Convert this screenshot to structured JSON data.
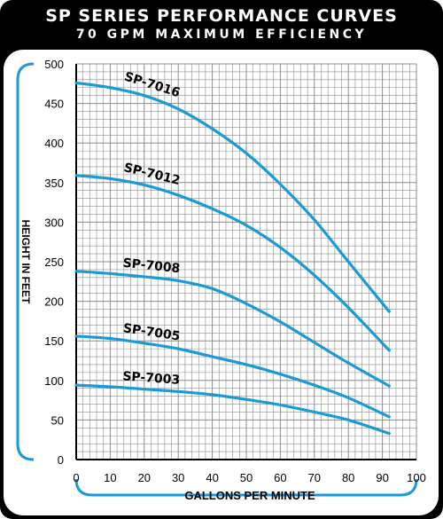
{
  "chart_data": {
    "type": "line",
    "title": "SP SERIES PERFORMANCE CURVES",
    "subtitle": "70 GPM MAXIMUM EFFICIENCY",
    "xlabel": "GALLONS PER MINUTE",
    "ylabel": "HEIGHT IN FEET",
    "xlim": [
      0,
      100
    ],
    "ylim": [
      0,
      500
    ],
    "xticks": [
      0,
      10,
      20,
      30,
      40,
      50,
      60,
      70,
      80,
      90,
      100
    ],
    "yticks": [
      0,
      50,
      100,
      150,
      200,
      250,
      300,
      350,
      400,
      450,
      500
    ],
    "grid": true,
    "x": [
      0,
      10,
      20,
      30,
      40,
      50,
      60,
      70,
      80,
      92
    ],
    "series": [
      {
        "name": "SP-7016",
        "values": [
          476,
          470,
          460,
          443,
          418,
          387,
          348,
          303,
          250,
          187
        ]
      },
      {
        "name": "SP-7012",
        "values": [
          359,
          355,
          347,
          334,
          317,
          296,
          268,
          233,
          192,
          138
        ]
      },
      {
        "name": "SP-7008",
        "values": [
          238,
          235,
          231,
          226,
          216,
          197,
          174,
          148,
          122,
          93
        ]
      },
      {
        "name": "SP-7005",
        "values": [
          156,
          153,
          147,
          140,
          130,
          120,
          108,
          94,
          78,
          54
        ]
      },
      {
        "name": "SP-7003",
        "values": [
          94,
          92,
          89,
          86,
          82,
          76,
          69,
          60,
          50,
          33
        ]
      }
    ],
    "colors": {
      "curve": "#1a9bd7",
      "grid": "#8c8c8c",
      "axis": "#000000",
      "accent": "#1a9bd7",
      "background": "#000000"
    }
  }
}
